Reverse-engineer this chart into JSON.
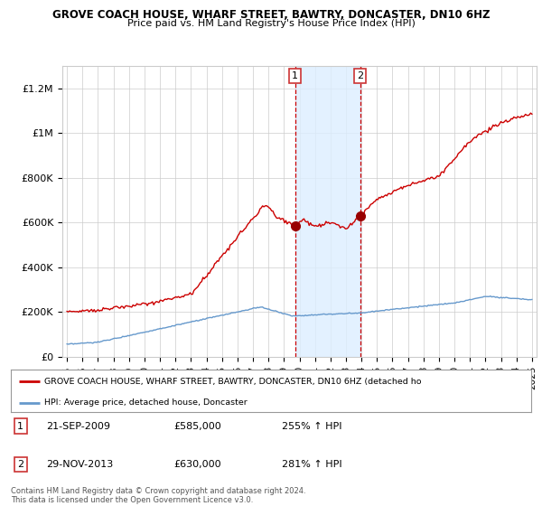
{
  "title": "GROVE COACH HOUSE, WHARF STREET, BAWTRY, DONCASTER, DN10 6HZ",
  "subtitle": "Price paid vs. HM Land Registry's House Price Index (HPI)",
  "ylim": [
    0,
    1300000
  ],
  "yticks": [
    0,
    200000,
    400000,
    600000,
    800000,
    1000000,
    1200000
  ],
  "ytick_labels": [
    "£0",
    "£200K",
    "£400K",
    "£600K",
    "£800K",
    "£1M",
    "£1.2M"
  ],
  "x_start_year": 1995,
  "x_end_year": 2025,
  "sale1_date": 2009.72,
  "sale1_price": 585000,
  "sale1_label": "1",
  "sale1_text": "21-SEP-2009",
  "sale1_price_str": "£585,000",
  "sale1_hpi": "255% ↑ HPI",
  "sale2_date": 2013.91,
  "sale2_price": 630000,
  "sale2_label": "2",
  "sale2_text": "29-NOV-2013",
  "sale2_price_str": "£630,000",
  "sale2_hpi": "281% ↑ HPI",
  "line_color_red": "#cc0000",
  "line_color_blue": "#6699cc",
  "shade_color": "#ddeeff",
  "grid_color": "#cccccc",
  "legend_label_red": "GROVE COACH HOUSE, WHARF STREET, BAWTRY, DONCASTER, DN10 6HZ (detached ho",
  "legend_label_blue": "HPI: Average price, detached house, Doncaster",
  "footnote": "Contains HM Land Registry data © Crown copyright and database right 2024.\nThis data is licensed under the Open Government Licence v3.0.",
  "background_color": "#ffffff"
}
